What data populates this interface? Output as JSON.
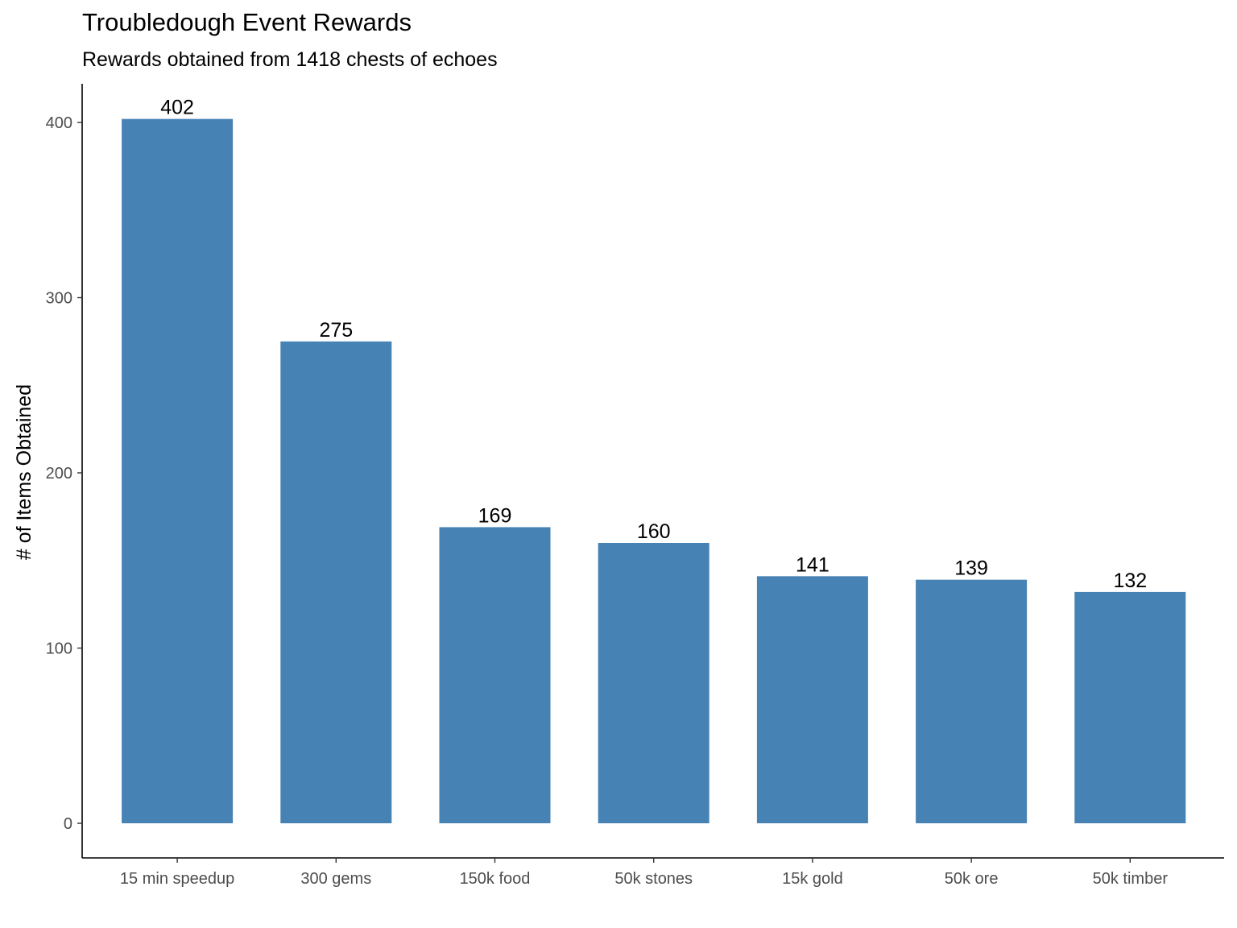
{
  "title": "Troubledough Event Rewards",
  "subtitle": "Rewards obtained from 1418 chests of echoes",
  "colors": {
    "bar": "#4682b4",
    "axis": "#000000",
    "tick_text": "#4d4d4d"
  },
  "chart_data": {
    "type": "bar",
    "title": "Troubledough Event Rewards",
    "subtitle": "Rewards obtained from 1418 chests of echoes",
    "xlabel": "",
    "ylabel": "# of Items Obtained",
    "categories": [
      "15 min speedup",
      "300 gems",
      "150k food",
      "50k stones",
      "15k gold",
      "50k ore",
      "50k timber"
    ],
    "values": [
      402,
      275,
      169,
      160,
      141,
      139,
      132
    ],
    "data_labels": [
      "402",
      "275",
      "169",
      "160",
      "141",
      "139",
      "132"
    ],
    "y_ticks": [
      0,
      100,
      200,
      300,
      400
    ],
    "y_tick_labels": [
      "0",
      "100",
      "200",
      "300",
      "400"
    ],
    "ylim": [
      -20,
      422
    ],
    "grid": false,
    "legend": "none"
  }
}
